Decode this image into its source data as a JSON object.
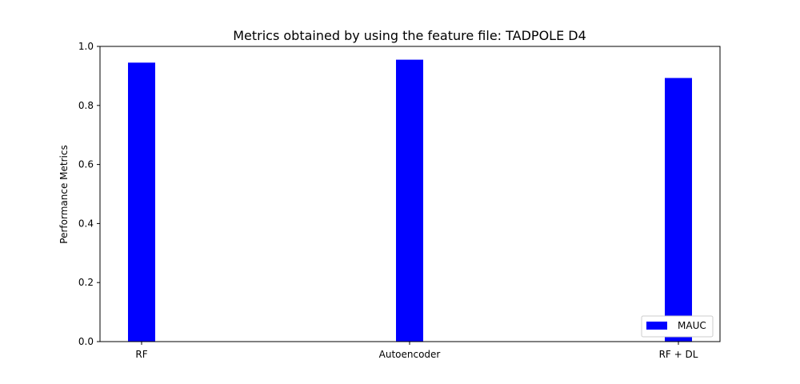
{
  "chart_data": {
    "type": "bar",
    "title": "Metrics obtained by using the feature file: TADPOLE D4",
    "xlabel": "",
    "ylabel": "Performance Metrics",
    "categories": [
      "RF",
      "Autoencoder",
      "RF + DL"
    ],
    "series": [
      {
        "name": "MAUC",
        "values": [
          0.945,
          0.955,
          0.893
        ],
        "color": "#0000ff"
      }
    ],
    "ylim": [
      0.0,
      1.0
    ],
    "yticks": [
      "0.0",
      "0.2",
      "0.4",
      "0.6",
      "0.8",
      "1.0"
    ],
    "grid": false,
    "legend_position": "lower-right"
  }
}
